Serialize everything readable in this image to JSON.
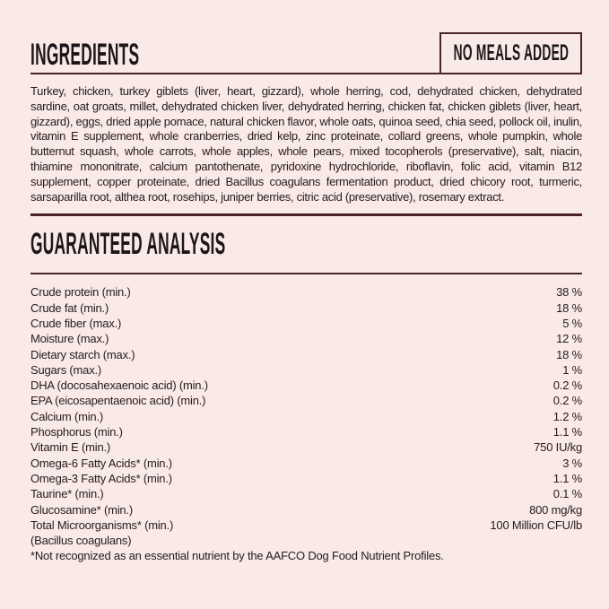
{
  "page": {
    "background_color": "#f9e9e7",
    "accent_color": "#4a2329",
    "text_color": "#241c1e"
  },
  "ingredients": {
    "title": "INGREDIENTS",
    "badge": "NO MEALS ADDED",
    "text": "Turkey, chicken, turkey giblets (liver, heart, gizzard), whole herring, cod, dehydrated chicken, dehydrated sardine, oat groats, millet, dehydrated chicken liver, dehydrated herring, chicken fat, chicken giblets (liver, heart, gizzard), eggs, dried apple pomace, natural chicken flavor, whole oats, quinoa seed, chia seed, pollock oil, inulin, vitamin E supplement, whole cranberries, dried kelp, zinc proteinate, collard greens, whole pumpkin, whole butternut squash, whole carrots, whole apples, whole pears, mixed tocopherols (preservative), salt, niacin, thiamine mononitrate, calcium pantothenate, pyridoxine hydrochloride, riboflavin, folic acid, vitamin B12 supplement, copper proteinate, dried Bacillus coagulans fermentation product, dried chicory root, turmeric, sarsaparilla root, althea root, rosehips, juniper berries, citric acid (preservative), rosemary extract."
  },
  "analysis": {
    "title": "GUARANTEED ANALYSIS",
    "rows": [
      {
        "label": "Crude protein (min.)",
        "value": "38 %"
      },
      {
        "label": "Crude fat (min.)",
        "value": "18 %"
      },
      {
        "label": "Crude fiber (max.)",
        "value": "5 %"
      },
      {
        "label": "Moisture (max.)",
        "value": "12 %"
      },
      {
        "label": "Dietary starch (max.)",
        "value": "18 %"
      },
      {
        "label": "Sugars (max.)",
        "value": "1 %"
      },
      {
        "label": "DHA (docosahexaenoic acid) (min.)",
        "value": "0.2 %"
      },
      {
        "label": "EPA (eicosapentaenoic acid) (min.)",
        "value": "0.2 %"
      },
      {
        "label": "Calcium (min.)",
        "value": "1.2 %"
      },
      {
        "label": "Phosphorus (min.)",
        "value": "1.1 %"
      },
      {
        "label": "Vitamin E (min.)",
        "value": "750 IU/kg"
      },
      {
        "label": "Omega-6 Fatty Acids* (min.)",
        "value": "3 %"
      },
      {
        "label": "Omega-3 Fatty Acids* (min.)",
        "value": "1.1 %"
      },
      {
        "label": "Taurine* (min.)",
        "value": "0.1 %"
      },
      {
        "label": "Glucosamine* (min.)",
        "value": "800 mg/kg"
      },
      {
        "label": "Total Microorganisms* (min.)",
        "value": "100 Million CFU/lb"
      },
      {
        "label": "(Bacillus coagulans)",
        "value": ""
      }
    ],
    "footnote": "*Not recognized as an essential nutrient by the AAFCO Dog Food Nutrient Profiles."
  }
}
